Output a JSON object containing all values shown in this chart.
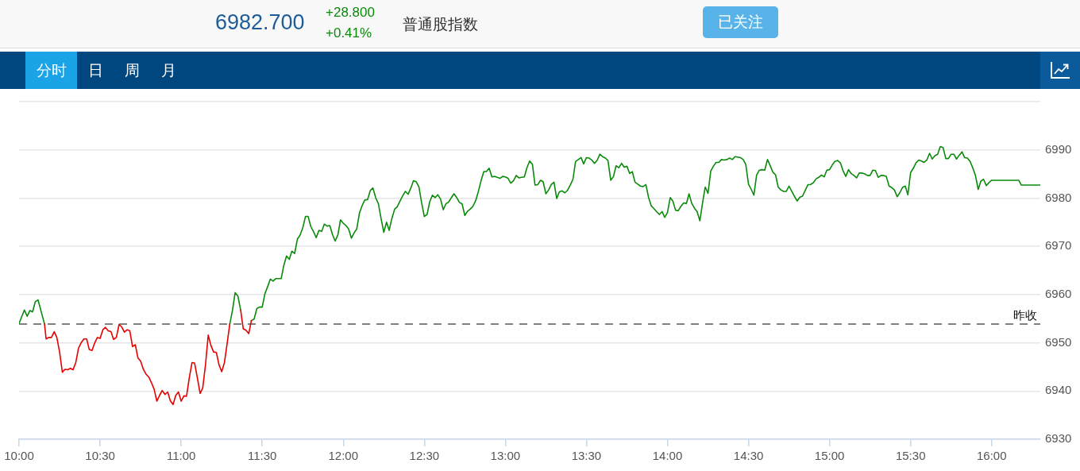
{
  "chart_data": {
    "type": "line",
    "title": "普通股指数",
    "annotations": [
      "6982.700",
      "+28.800",
      "+0.41%",
      "已关注",
      "分时",
      "日",
      "周",
      "月"
    ],
    "xlim": [
      10,
      16.3
    ],
    "xticks": [
      {
        "value": 10,
        "label": "10:00"
      },
      {
        "value": 10.5,
        "label": "10:30"
      },
      {
        "value": 11,
        "label": "11:00"
      },
      {
        "value": 11.5,
        "label": "11:30"
      },
      {
        "value": 12,
        "label": "12:00"
      },
      {
        "value": 12.5,
        "label": "12:30"
      },
      {
        "value": 13,
        "label": "13:00"
      },
      {
        "value": 13.5,
        "label": "13:30"
      },
      {
        "value": 14,
        "label": "14:00"
      },
      {
        "value": 14.5,
        "label": "14:30"
      },
      {
        "value": 15,
        "label": "15:00"
      },
      {
        "value": 15.5,
        "label": "15:30"
      },
      {
        "value": 16,
        "label": "16:00"
      }
    ],
    "ylim": [
      6930,
      7000
    ],
    "yticks": [
      6930,
      6940,
      6950,
      6960,
      6970,
      6980,
      6990,
      {
        "value": 7000,
        "label": null
      }
    ],
    "grid": "y",
    "marker": "none",
    "ref_lines": [
      {
        "axis": "y",
        "value": 6953.9,
        "label": "昨收",
        "color": "#808080",
        "line_style": "dashed"
      }
    ],
    "series": [
      {
        "color": "#0a8a0a",
        "x": [
          10,
          10.033,
          10.05,
          10.067,
          10.083,
          10.1,
          10.117,
          10.157,
          10.5,
          11.3,
          11.317,
          11.333,
          11.35,
          11.367,
          11.4,
          11.433,
          11.45,
          11.467,
          11.483,
          11.5,
          11.517,
          11.533,
          11.55,
          11.567,
          11.583,
          11.6,
          11.617,
          11.633,
          11.65,
          11.667,
          11.683,
          11.7,
          11.717,
          11.733,
          11.75,
          11.767,
          11.783,
          11.8,
          11.817,
          11.833,
          11.85,
          11.867,
          11.883,
          11.9,
          11.917,
          11.933,
          11.95,
          11.967,
          11.983,
          12,
          12.017,
          12.033,
          12.05,
          12.067,
          12.083,
          12.1,
          12.117,
          12.133,
          12.15,
          12.167,
          12.183,
          12.2,
          12.217,
          12.233,
          12.25,
          12.267,
          12.283,
          12.3,
          12.317,
          12.333,
          12.35,
          12.367,
          12.383,
          12.4,
          12.417,
          12.433,
          12.45,
          12.467,
          12.483,
          12.5,
          12.517,
          12.533,
          12.55,
          12.567,
          12.583,
          12.6,
          12.617,
          12.633,
          12.65,
          12.667,
          12.683,
          12.7,
          12.717,
          12.733,
          12.75,
          12.767,
          12.783,
          12.8,
          12.817,
          12.833,
          12.85,
          12.867,
          12.883,
          12.9,
          12.917,
          12.933,
          12.95,
          12.967,
          12.983,
          13,
          13.017,
          13.033,
          13.05,
          13.067,
          13.083,
          13.1,
          13.117,
          13.133,
          13.15,
          13.167,
          13.183,
          13.2,
          13.217,
          13.233,
          13.25,
          13.267,
          13.283,
          13.3,
          13.317,
          13.333,
          13.35,
          13.367,
          13.383,
          13.4,
          13.417,
          13.433,
          13.45,
          13.467,
          13.483,
          13.5,
          13.517,
          13.533,
          13.55,
          13.567,
          13.583,
          13.6,
          13.617,
          13.633,
          13.65,
          13.667,
          13.683,
          13.7,
          13.717,
          13.733,
          13.75,
          13.767,
          13.783,
          13.8,
          13.817,
          13.833,
          13.85,
          13.867,
          13.883,
          13.9,
          13.917,
          13.933,
          13.95,
          13.967,
          13.983,
          14,
          14.017,
          14.033,
          14.05,
          14.067,
          14.083,
          14.1,
          14.117,
          14.133,
          14.15,
          14.167,
          14.183,
          14.2,
          14.217,
          14.233,
          14.25,
          14.267,
          14.283,
          14.3,
          14.317,
          14.333,
          14.35,
          14.367,
          14.383,
          14.4,
          14.417,
          14.433,
          14.45,
          14.467,
          14.483,
          14.5,
          14.517,
          14.533,
          14.55,
          14.567,
          14.583,
          14.6,
          14.617,
          14.633,
          14.65,
          14.667,
          14.683,
          14.7,
          14.717,
          14.733,
          14.75,
          14.767,
          14.783,
          14.8,
          14.817,
          14.833,
          14.85,
          14.867,
          14.883,
          14.9,
          14.917,
          14.933,
          14.95,
          14.967,
          14.983,
          15,
          15.017,
          15.033,
          15.05,
          15.067,
          15.083,
          15.1,
          15.117,
          15.133,
          15.15,
          15.167,
          15.183,
          15.2,
          15.217,
          15.233,
          15.25,
          15.267,
          15.283,
          15.3,
          15.317,
          15.333,
          15.35,
          15.367,
          15.383,
          15.4,
          15.417,
          15.433,
          15.45,
          15.467,
          15.483,
          15.5,
          15.517,
          15.533,
          15.55,
          15.567,
          15.583,
          15.6,
          15.617,
          15.633,
          15.65,
          15.667,
          15.683,
          15.7,
          15.717,
          15.733,
          15.75,
          15.767,
          15.783,
          15.8,
          15.817,
          15.833,
          15.85,
          15.867,
          15.883,
          15.9,
          15.917,
          15.933,
          15.95,
          15.967,
          15.983,
          16,
          16.167,
          16.183,
          16.3
        ],
        "values": [
          6954.0,
          6956.8,
          6955.5,
          6956.7,
          6956.4,
          6958.5,
          6958.9,
          6953.9,
          null,
          6953.9,
          6956.8,
          6960.4,
          6959.7,
          6956.8,
          null,
          6954.6,
          6954.9,
          6957.1,
          6957.4,
          6957.4,
          6960.2,
          6961.6,
          6963.2,
          6962.8,
          6963.3,
          6963.3,
          6963.3,
          6966.0,
          6968.0,
          6967.3,
          6969.0,
          6968.5,
          6971.5,
          6972.3,
          6973.8,
          6976.2,
          6976.2,
          6974.1,
          6973.0,
          6971.8,
          6973.3,
          6973.1,
          6974.6,
          6974.2,
          6974.3,
          6972.5,
          6971.1,
          6972.4,
          6975.5,
          6974.8,
          6974.3,
          6973.6,
          6971.7,
          6972.8,
          6973.6,
          6976.9,
          6978.5,
          6979.6,
          6979.7,
          6981.6,
          6982.1,
          6980.1,
          6978.8,
          6975.8,
          6972.9,
          6975.0,
          6973.3,
          6975.8,
          6977.7,
          6978.2,
          6979.4,
          6980.5,
          6981.4,
          6980.8,
          6982.1,
          6983.6,
          6983.4,
          6982.3,
          6979.1,
          6976.2,
          6976.6,
          6979.2,
          6980.6,
          6980.1,
          6980.7,
          6979.8,
          6977.6,
          6978.8,
          6979.2,
          6980.1,
          6980.9,
          6980.1,
          6979.1,
          6978.8,
          6976.4,
          6977.3,
          6977.7,
          6978.3,
          6979.5,
          6981.3,
          6983.6,
          6985.5,
          6985.5,
          6986.2,
          6984.4,
          6984.5,
          6984.3,
          6984.1,
          6984.5,
          6984.4,
          6984.1,
          6983.1,
          6983.6,
          6984.7,
          6984.2,
          6984.3,
          6984.4,
          6986.3,
          6987.7,
          6987.0,
          6982.7,
          6982.8,
          6983.7,
          6983.4,
          6980.9,
          6981.7,
          6982.8,
          6983.3,
          6979.9,
          6981.3,
          6981.5,
          6981.1,
          6981.6,
          6982.7,
          6983.9,
          6987.6,
          6988.0,
          6988.4,
          6987.1,
          6988.4,
          6988.3,
          6987.9,
          6987.2,
          6987.9,
          6989.1,
          6988.6,
          6988.3,
          6987.8,
          6983.7,
          6984.5,
          6986.7,
          6986.3,
          6987.2,
          6986.4,
          6986.6,
          6985.1,
          6985.5,
          6983.3,
          6982.9,
          6982.5,
          6982.4,
          6982.8,
          6980.2,
          6978.4,
          6977.8,
          6977.2,
          6976.6,
          6977.2,
          6976.0,
          6977.0,
          6980.1,
          6979.4,
          6977.5,
          6977.4,
          6978.3,
          6979.0,
          6978.9,
          6980.9,
          6978.9,
          6977.9,
          6977.2,
          6975.3,
          6979.1,
          6982.3,
          6981.0,
          6985.6,
          6986.6,
          6987.4,
          6987.4,
          6988.0,
          6987.9,
          6988.0,
          6988.3,
          6988.0,
          6988.6,
          6988.5,
          6988.4,
          6988.0,
          6987.0,
          6982.9,
          6981.8,
          6980.6,
          6984.8,
          6985.8,
          6985.9,
          6985.8,
          6988.0,
          6986.8,
          6985.4,
          6984.8,
          6982.3,
          6981.7,
          6981.4,
          6981.4,
          6982.5,
          6981.4,
          6980.4,
          6979.4,
          6980.2,
          6980.4,
          6981.6,
          6982.8,
          6982.8,
          6983.2,
          6984.0,
          6984.3,
          6984.8,
          6984.4,
          6985.8,
          6985.9,
          6986.9,
          6987.6,
          6987.8,
          6987.3,
          6985.7,
          6984.5,
          6985.9,
          6985.1,
          6984.7,
          6984.2,
          6985.2,
          6985.2,
          6985.0,
          6984.7,
          6984.7,
          6985.8,
          6985.7,
          6984.3,
          6984.7,
          6984.7,
          6984.5,
          6982.5,
          6982.2,
          6981.7,
          6980.3,
          6981.1,
          6982.2,
          6982.5,
          6980.7,
          6985.3,
          6986.2,
          6987.3,
          6987.9,
          6987.7,
          6987.4,
          6987.9,
          6989.3,
          6988.1,
          6988.8,
          6989.1,
          6990.7,
          6990.5,
          6988.2,
          6988.2,
          6989.1,
          6989.1,
          6988.1,
          6988.9,
          6989.6,
          6988.4,
          6988.3,
          6987.6,
          6986.3,
          6984.7,
          6981.8,
          6983.5,
          6983.9,
          6982.6,
          6983.2,
          6983.7,
          6983.7,
          6982.7,
          6982.7
        ]
      },
      {
        "color": "#e60000",
        "x": [
          10.157,
          10.167,
          10.183,
          10.2,
          10.217,
          10.233,
          10.25,
          10.267,
          10.283,
          10.3,
          10.317,
          10.333,
          10.35,
          10.367,
          10.383,
          10.4,
          10.417,
          10.433,
          10.45,
          10.467,
          10.483,
          10.5,
          10.517,
          10.533,
          10.55,
          10.567,
          10.583,
          10.6,
          10.617,
          10.633,
          10.65,
          10.667,
          10.683,
          10.7,
          10.717,
          10.733,
          10.75,
          10.767,
          10.783,
          10.8,
          10.817,
          10.833,
          10.85,
          10.867,
          10.883,
          10.9,
          10.917,
          10.933,
          10.95,
          10.967,
          10.983,
          11,
          11.017,
          11.033,
          11.05,
          11.067,
          11.083,
          11.1,
          11.117,
          11.133,
          11.15,
          11.167,
          11.183,
          11.2,
          11.217,
          11.233,
          11.25,
          11.267,
          11.283,
          11.3,
          11.35,
          11.367,
          11.383,
          11.4,
          11.417,
          11.433
        ],
        "values": [
          6953.9,
          6950.8,
          6951.1,
          6951.1,
          6952.3,
          6951.1,
          6948.1,
          6943.9,
          6944.5,
          6944.4,
          6944.7,
          6944.4,
          6945.9,
          6948.9,
          6950.0,
          6950.8,
          6950.8,
          6948.6,
          6948.4,
          6950.0,
          6951.1,
          6950.9,
          6952.7,
          6953.2,
          6952.5,
          6952.3,
          6950.7,
          6951.1,
          6953.8,
          6953.3,
          6952.2,
          6952.7,
          6952.5,
          6949.2,
          6949.6,
          6946.9,
          6946.2,
          6944.5,
          6943.5,
          6942.9,
          6941.7,
          6940.4,
          6937.9,
          6939.1,
          6940.1,
          6939.3,
          6939.8,
          6938.0,
          6937.2,
          6939.1,
          6939.8,
          6937.9,
          6939.0,
          6938.9,
          6942.7,
          6945.9,
          6945.8,
          6942.7,
          6939.5,
          6940.6,
          6945.4,
          6951.6,
          6949.5,
          6948.1,
          6948.0,
          6945.5,
          6944.0,
          6945.9,
          6949.7,
          6953.9,
          null,
          6956.8,
          6952.9,
          6952.6,
          6951.9,
          6954.6
        ]
      }
    ]
  }
}
